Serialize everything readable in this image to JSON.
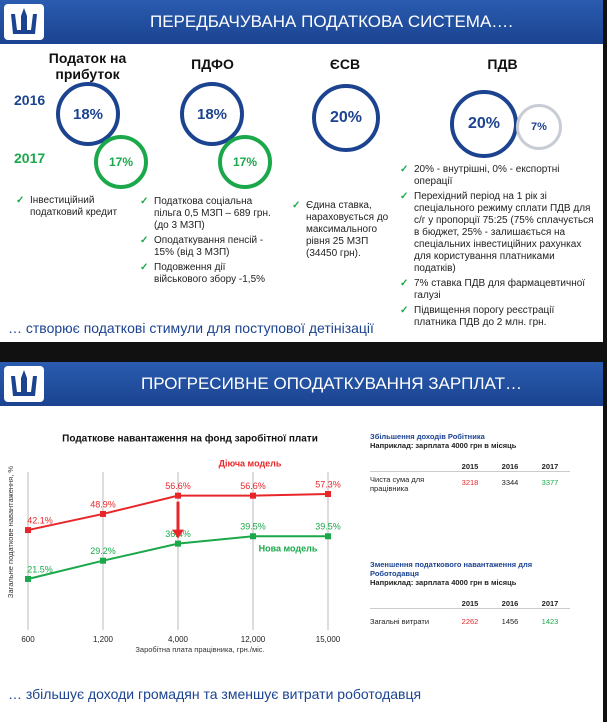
{
  "slide1": {
    "title": "ПЕРЕДБАЧУВАНА ПОДАТКОВА СИСТЕМА….",
    "years": [
      "2016",
      "2017"
    ],
    "columns": [
      {
        "name": "Податок на прибуток",
        "rates": [
          "18%",
          "17%"
        ],
        "bullets": [
          "Інвестиційний податковий кредит"
        ]
      },
      {
        "name": "ПДФО",
        "rates": [
          "18%",
          "17%"
        ],
        "bullets": [
          "Податкова соціальна пільга 0,5 МЗП – 689 грн. (до 3 МЗП)",
          "Оподаткування пенсій - 15% (від 3 МЗП)",
          "Подовження дії військового збору -1,5%"
        ]
      },
      {
        "name": "ЄСВ",
        "rates": [
          "20%"
        ],
        "bullets": [
          "Єдина ставка, нараховується до максимального рівня 25 МЗП (34450 грн)."
        ]
      },
      {
        "name": "ПДВ",
        "rates": [
          "20%",
          "7%"
        ],
        "bullets": [
          "20% - внутрішні, 0% - експортні операції",
          "Перехідний період на 1 рік зі спеціального режиму сплати ПДВ для с/г у пропорції 75:25 (75% сплачується в бюджет, 25% - залишається на спеціальних інвестиційних рахунках для користування платниками податків)",
          "7% ставка ПДВ для фармацевтичної галузі",
          "Підвищення порогу реєстрації платника ПДВ до 2 млн. грн."
        ]
      }
    ],
    "footer": "… створює податкові стимули для поступової детінізації"
  },
  "slide2": {
    "title": "ПРОГРЕСИВНЕ ОПОДАТКУВАННЯ ЗАРПЛАТ…",
    "footer": "… збільшує доходи громадян та зменшує витрати роботодавця",
    "tables": [
      {
        "title": "Збільшення доходів Робітника",
        "subtitle": "Наприклад: зарплата 4000 грн в місяць",
        "headers": [
          "2015",
          "2016",
          "2017"
        ],
        "row_label": "Чиста сума для працівника",
        "values": [
          3218,
          3344,
          3377
        ]
      },
      {
        "title": "Зменшення податкового навантаження для Роботодавця",
        "subtitle": "Наприклад: зарплата 4000 грн в місяць",
        "headers": [
          "2015",
          "2016",
          "2017"
        ],
        "row_label": "Загальні витрати",
        "values": [
          2262,
          1456,
          1423
        ]
      }
    ]
  },
  "chart_data": {
    "type": "line",
    "title": "Податкове навантаження на фонд заробітної плати",
    "y_label": "Загальне податкове навантаження, %",
    "x_label": "Заробітна плата працівника, грн./міс.",
    "categories": [
      "600",
      "1,200",
      "4,000",
      "12,000",
      "15,000"
    ],
    "ylim": [
      0,
      75
    ],
    "series": [
      {
        "name": "Діюча модель",
        "color": "#e8262a",
        "values": [
          42.1,
          48.9,
          56.6,
          56.6,
          57.3
        ],
        "value_labels": [
          "42.1%",
          "48.9%",
          "56.6%",
          "56.6%",
          "57.3%"
        ]
      },
      {
        "name": "Нова модель",
        "color": "#1aa84a",
        "values": [
          21.5,
          29.2,
          36.4,
          39.5,
          39.5
        ],
        "value_labels": [
          "21.5%",
          "29.2%",
          "36.4%",
          "39.5%",
          "39.5%"
        ]
      }
    ]
  }
}
